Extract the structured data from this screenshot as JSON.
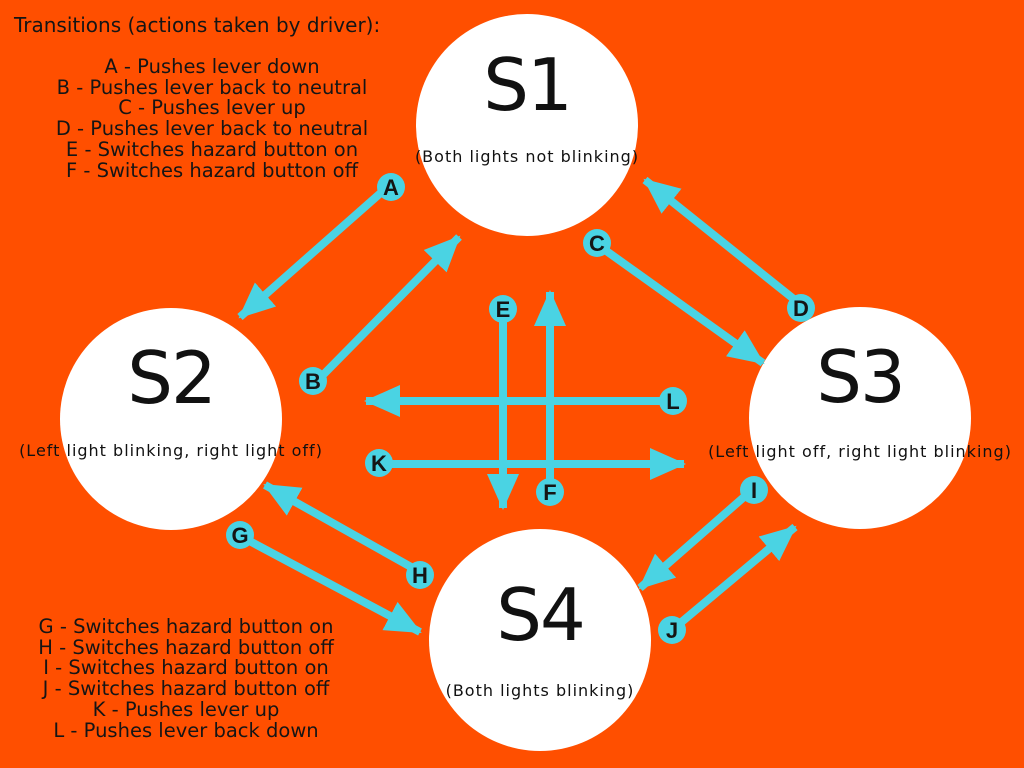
{
  "legend_top": {
    "title": "Transitions (actions taken by driver):",
    "items": [
      "A - Pushes lever down",
      "B - Pushes lever back to neutral",
      "C - Pushes lever up",
      "D - Pushes lever back to neutral",
      "E - Switches hazard button on",
      "F - Switches hazard button off"
    ]
  },
  "legend_bottom": {
    "items": [
      "G - Switches hazard button on",
      "H - Switches hazard button off",
      "I - Switches hazard button on",
      "J - Switches hazard button off",
      "K - Pushes lever up",
      "L - Pushes lever back down"
    ]
  },
  "states": [
    {
      "id": "s1",
      "name": "S1",
      "description": "(Both lights not blinking)"
    },
    {
      "id": "s2",
      "name": "S2",
      "description": "(Left light blinking, right light off)"
    },
    {
      "id": "s3",
      "name": "S3",
      "description": "(Left light off, right light blinking)"
    },
    {
      "id": "s4",
      "name": "S4",
      "description": "(Both lights blinking)"
    }
  ],
  "transitions": [
    {
      "label": "A",
      "from": "S1",
      "to": "S2"
    },
    {
      "label": "B",
      "from": "S2",
      "to": "S1"
    },
    {
      "label": "C",
      "from": "S1",
      "to": "S3"
    },
    {
      "label": "D",
      "from": "S3",
      "to": "S1"
    },
    {
      "label": "E",
      "from": "S1",
      "to": "S4"
    },
    {
      "label": "F",
      "from": "S4",
      "to": "S1"
    },
    {
      "label": "G",
      "from": "S2",
      "to": "S4"
    },
    {
      "label": "H",
      "from": "S4",
      "to": "S2"
    },
    {
      "label": "I",
      "from": "S3",
      "to": "S4"
    },
    {
      "label": "J",
      "from": "S4",
      "to": "S3"
    },
    {
      "label": "K",
      "from": "S2",
      "to": "S3"
    },
    {
      "label": "L",
      "from": "S3",
      "to": "S2"
    }
  ],
  "colors": {
    "background": "#ff4f00",
    "state_fill": "#ffffff",
    "arrow": "#4ad3e3",
    "text": "#151515"
  }
}
